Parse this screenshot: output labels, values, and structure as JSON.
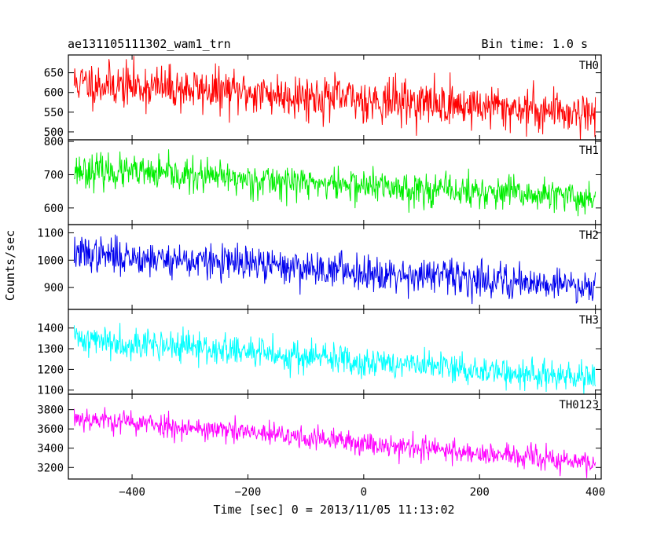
{
  "header": {
    "title": "ae131105111302_wam1_trn",
    "bin_time": "Bin time: 1.0 s"
  },
  "axes": {
    "ylabel": "Counts/sec",
    "xlabel": "Time [sec] 0 = 2013/11/05 11:13:02"
  },
  "chart_data": {
    "type": "line",
    "title": "ae131105111302_wam1_trn",
    "xlabel": "Time [sec] 0 = 2013/11/05 11:13:02",
    "ylabel": "Counts/sec",
    "xlim": [
      -510,
      410
    ],
    "x_ticks": [
      -400,
      -200,
      0,
      200,
      400
    ],
    "x_step": 1,
    "grid": false,
    "panels": [
      {
        "name": "TH0",
        "color": "#ff0000",
        "ylim": [
          480,
          695
        ],
        "y_ticks": [
          500,
          550,
          600,
          650
        ],
        "trend": {
          "x": [
            -500,
            400
          ],
          "y": [
            625,
            548
          ]
        },
        "noise": 28,
        "seed": 11
      },
      {
        "name": "TH1",
        "color": "#00ee00",
        "ylim": [
          550,
          805
        ],
        "y_ticks": [
          600,
          700,
          800
        ],
        "trend": {
          "x": [
            -500,
            400
          ],
          "y": [
            715,
            628
          ]
        },
        "noise": 25,
        "seed": 23
      },
      {
        "name": "TH2",
        "color": "#0000ee",
        "ylim": [
          820,
          1130
        ],
        "y_ticks": [
          900,
          1000,
          1100
        ],
        "trend": {
          "x": [
            -500,
            400
          ],
          "y": [
            1025,
            905
          ]
        },
        "noise": 32,
        "seed": 37
      },
      {
        "name": "TH3",
        "color": "#00ffff",
        "ylim": [
          1080,
          1490
        ],
        "y_ticks": [
          1100,
          1200,
          1300,
          1400
        ],
        "trend": {
          "x": [
            -500,
            400
          ],
          "y": [
            1350,
            1150
          ]
        },
        "noise": 38,
        "seed": 41
      },
      {
        "name": "TH0123",
        "color": "#ff00ff",
        "ylim": [
          3080,
          3960
        ],
        "y_ticks": [
          3200,
          3400,
          3600,
          3800
        ],
        "trend": {
          "x": [
            -500,
            400
          ],
          "y": [
            3720,
            3240
          ]
        },
        "noise": 62,
        "seed": 53
      }
    ]
  }
}
